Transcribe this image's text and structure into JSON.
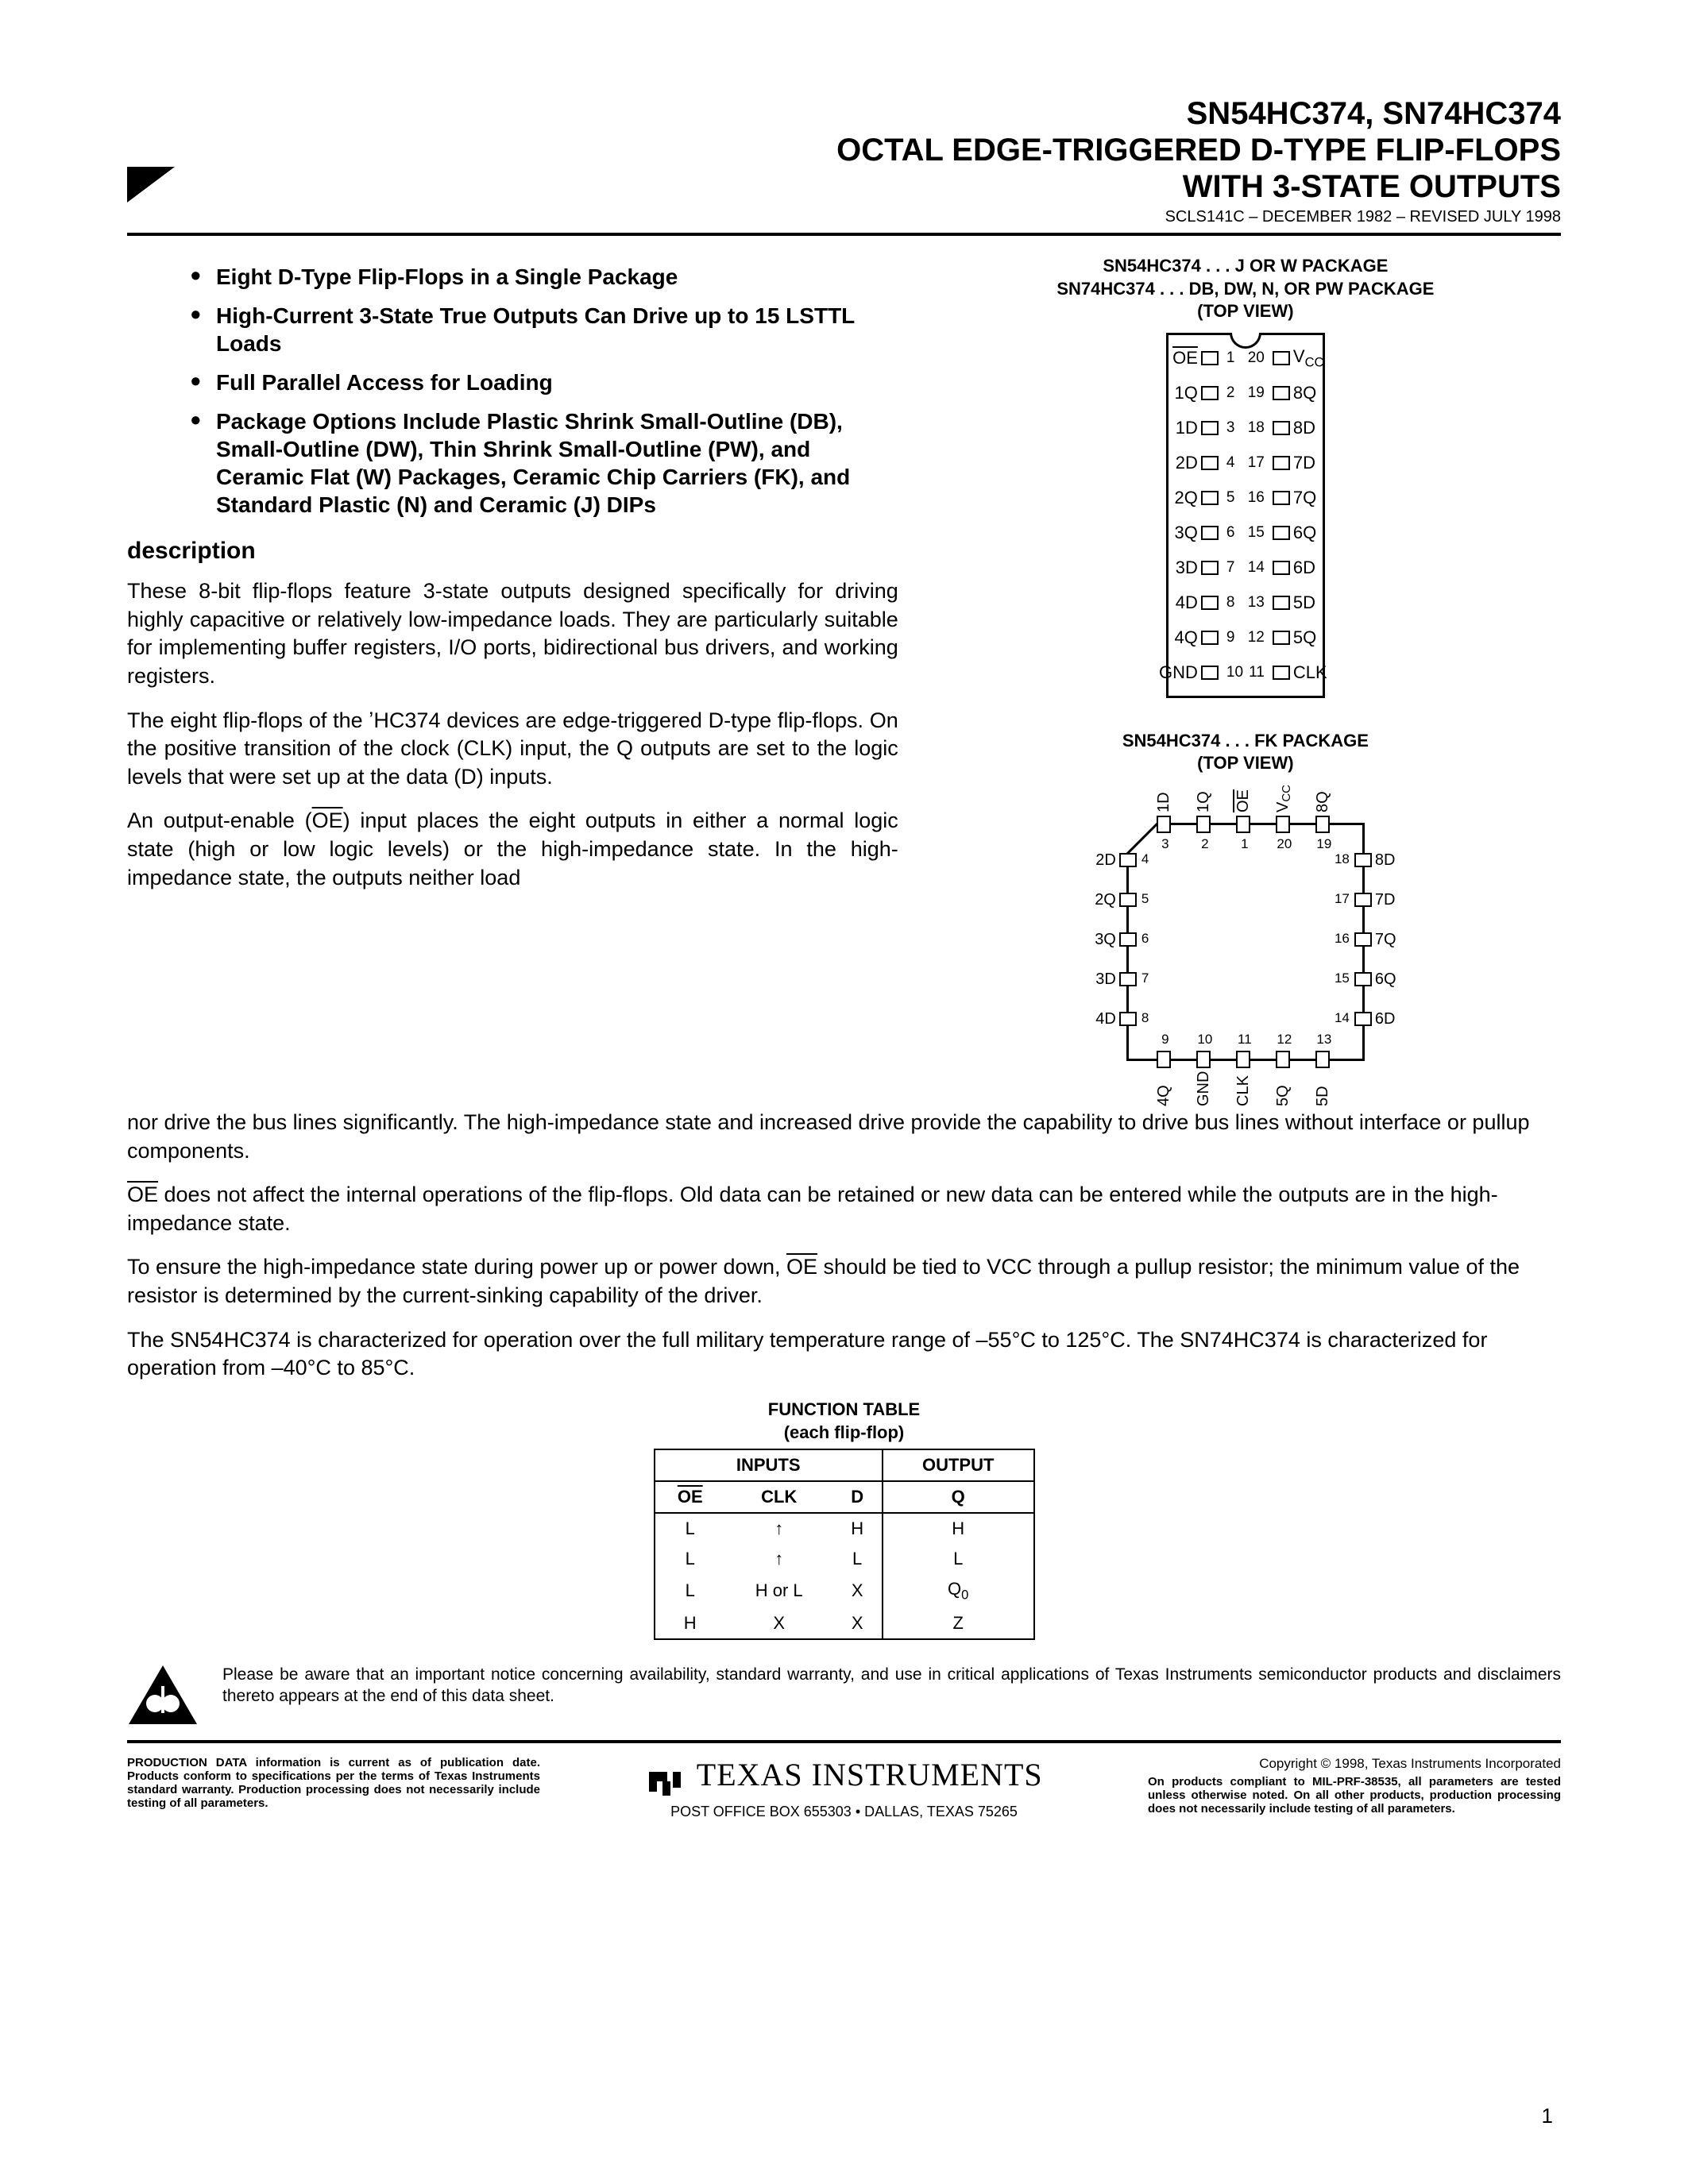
{
  "header": {
    "part_numbers": "SN54HC374, SN74HC374",
    "title_line1": "OCTAL EDGE-TRIGGERED D-TYPE FLIP-FLOPS",
    "title_line2": "WITH 3-STATE OUTPUTS",
    "doc_id": "SCLS141C – DECEMBER 1982 – REVISED JULY 1998"
  },
  "bullets": [
    "Eight D-Type Flip-Flops in a Single Package",
    "High-Current 3-State True Outputs Can Drive up to 15 LSTTL Loads",
    "Full Parallel Access for Loading",
    "Package Options Include Plastic Shrink Small-Outline (DB), Small-Outline (DW), Thin Shrink Small-Outline (PW), and Ceramic Flat (W) Packages, Ceramic Chip Carriers (FK), and Standard Plastic (N) and Ceramic (J) DIPs"
  ],
  "description_heading": "description",
  "description": {
    "p1": "These 8-bit flip-flops feature 3-state outputs designed specifically for driving highly capacitive or relatively low-impedance loads. They are particularly suitable for implementing buffer registers, I/O ports, bidirectional bus drivers, and working registers.",
    "p2": "The eight flip-flops of the ʼHC374 devices are edge-triggered D-type flip-flops. On the positive transition of the clock (CLK) input, the Q outputs are set to the logic levels that were set up at the data (D) inputs.",
    "p3a": "An output-enable (",
    "p3b": ") input places the eight outputs in either a normal logic state (high or low logic levels) or the high-impedance state. In the high-impedance state, the outputs neither load",
    "p3c": "nor drive the bus lines significantly. The high-impedance state and increased drive provide the capability to drive bus lines without interface or pullup components.",
    "p4b": " does not affect the internal operations of the flip-flops. Old data can be retained or new data can be entered while the outputs are in the high-impedance state.",
    "p5a": "To ensure the high-impedance state during power up or power down, ",
    "p5b": " should be tied to V",
    "p5c": " through a pullup resistor; the minimum value of the resistor is determined by the current-sinking capability of the driver.",
    "p6": "The SN54HC374 is characterized for operation over the full military temperature range of –55°C to 125°C. The SN74HC374 is characterized for operation from –40°C to 85°C."
  },
  "dip_package": {
    "title_l1": "SN54HC374 . . . J OR W PACKAGE",
    "title_l2": "SN74HC374 . . . DB, DW, N, OR PW PACKAGE",
    "title_l3": "(TOP VIEW)",
    "left_pins": [
      {
        "n": "1",
        "l": "OE",
        "ov": true
      },
      {
        "n": "2",
        "l": "1Q"
      },
      {
        "n": "3",
        "l": "1D"
      },
      {
        "n": "4",
        "l": "2D"
      },
      {
        "n": "5",
        "l": "2Q"
      },
      {
        "n": "6",
        "l": "3Q"
      },
      {
        "n": "7",
        "l": "3D"
      },
      {
        "n": "8",
        "l": "4D"
      },
      {
        "n": "9",
        "l": "4Q"
      },
      {
        "n": "10",
        "l": "GND"
      }
    ],
    "right_pins": [
      {
        "n": "20",
        "l": "VCC",
        "sub": "CC"
      },
      {
        "n": "19",
        "l": "8Q"
      },
      {
        "n": "18",
        "l": "8D"
      },
      {
        "n": "17",
        "l": "7D"
      },
      {
        "n": "16",
        "l": "7Q"
      },
      {
        "n": "15",
        "l": "6Q"
      },
      {
        "n": "14",
        "l": "6D"
      },
      {
        "n": "13",
        "l": "5D"
      },
      {
        "n": "12",
        "l": "5Q"
      },
      {
        "n": "11",
        "l": "CLK"
      }
    ]
  },
  "fk_package": {
    "title_l1": "SN54HC374 . . . FK PACKAGE",
    "title_l2": "(TOP VIEW)",
    "top": [
      {
        "n": "3",
        "l": "1D"
      },
      {
        "n": "2",
        "l": "1Q"
      },
      {
        "n": "1",
        "l": "OE",
        "ov": true
      },
      {
        "n": "20",
        "l": "VCC",
        "sub": "CC"
      },
      {
        "n": "19",
        "l": "8Q"
      }
    ],
    "left": [
      {
        "n": "4",
        "l": "2D"
      },
      {
        "n": "5",
        "l": "2Q"
      },
      {
        "n": "6",
        "l": "3Q"
      },
      {
        "n": "7",
        "l": "3D"
      },
      {
        "n": "8",
        "l": "4D"
      }
    ],
    "right": [
      {
        "n": "18",
        "l": "8D"
      },
      {
        "n": "17",
        "l": "7D"
      },
      {
        "n": "16",
        "l": "7Q"
      },
      {
        "n": "15",
        "l": "6Q"
      },
      {
        "n": "14",
        "l": "6D"
      }
    ],
    "bottom": [
      {
        "n": "9",
        "l": "4Q"
      },
      {
        "n": "10",
        "l": "GND"
      },
      {
        "n": "11",
        "l": "CLK"
      },
      {
        "n": "12",
        "l": "5Q"
      },
      {
        "n": "13",
        "l": "5D"
      }
    ]
  },
  "function_table": {
    "title_l1": "FUNCTION TABLE",
    "title_l2": "(each flip-flop)",
    "inputs_h": "INPUTS",
    "output_h": "OUTPUT",
    "cols": [
      "OE",
      "CLK",
      "D",
      "Q"
    ],
    "rows": [
      [
        "L",
        "↑",
        "H",
        "H"
      ],
      [
        "L",
        "↑",
        "L",
        "L"
      ],
      [
        "L",
        "H or L",
        "X",
        "Q0"
      ],
      [
        "H",
        "X",
        "X",
        "Z"
      ]
    ]
  },
  "disclaimer": "Please be aware that an important notice concerning availability, standard warranty, and use in critical applications of Texas Instruments semiconductor products and disclaimers thereto appears at the end of this data sheet.",
  "footer": {
    "prod_data": "PRODUCTION DATA information is current as of publication date. Products conform to specifications per the terms of Texas Instruments standard warranty. Production processing does not necessarily include testing of all parameters.",
    "ti_name": "TEXAS INSTRUMENTS",
    "ti_addr": "POST OFFICE BOX 655303 • DALLAS, TEXAS 75265",
    "copyright": "Copyright © 1998, Texas Instruments Incorporated",
    "mil": "On products compliant to MIL-PRF-38535, all parameters are tested unless otherwise noted. On all other products, production processing does not necessarily include testing of all parameters."
  },
  "page_num": "1"
}
